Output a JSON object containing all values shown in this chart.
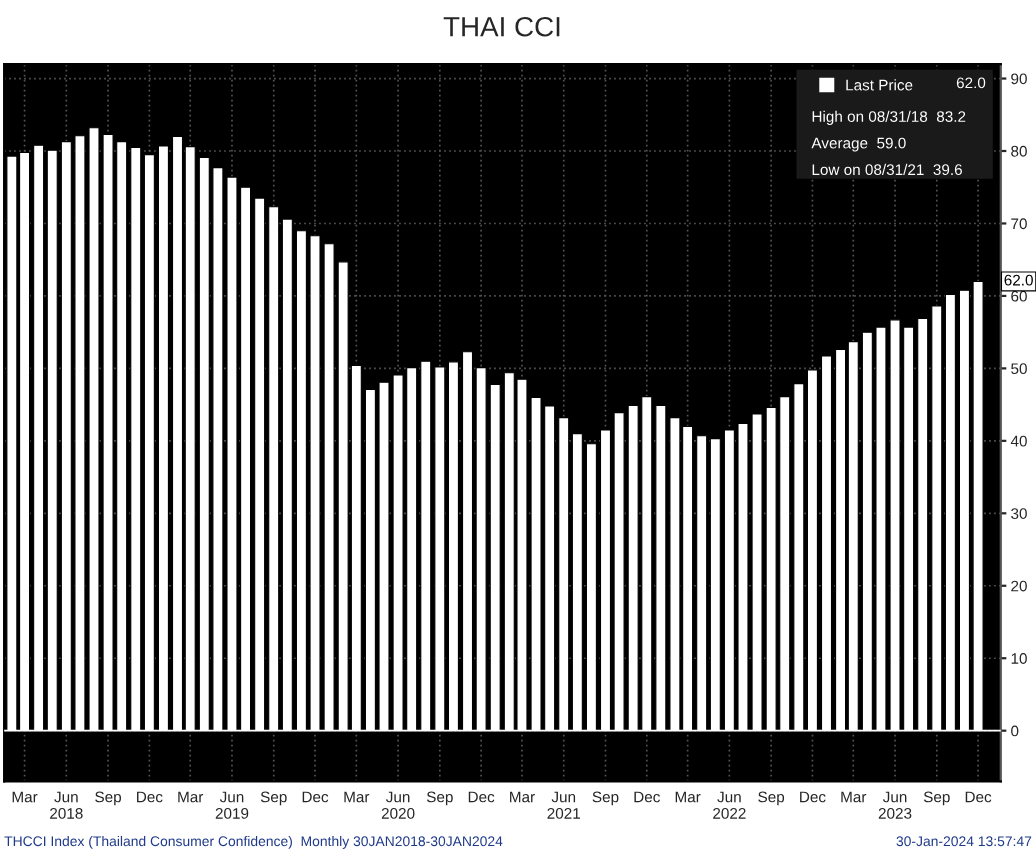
{
  "chart_data": {
    "type": "bar",
    "title": "THAI CCI",
    "x": [
      "2018-02",
      "2018-03",
      "2018-04",
      "2018-05",
      "2018-06",
      "2018-07",
      "2018-08",
      "2018-09",
      "2018-10",
      "2018-11",
      "2018-12",
      "2019-01",
      "2019-02",
      "2019-03",
      "2019-04",
      "2019-05",
      "2019-06",
      "2019-07",
      "2019-08",
      "2019-09",
      "2019-10",
      "2019-11",
      "2019-12",
      "2020-01",
      "2020-02",
      "2020-03",
      "2020-04",
      "2020-05",
      "2020-06",
      "2020-07",
      "2020-08",
      "2020-09",
      "2020-10",
      "2020-11",
      "2020-12",
      "2021-01",
      "2021-02",
      "2021-03",
      "2021-04",
      "2021-05",
      "2021-06",
      "2021-07",
      "2021-08",
      "2021-09",
      "2021-10",
      "2021-11",
      "2021-12",
      "2022-01",
      "2022-02",
      "2022-03",
      "2022-04",
      "2022-05",
      "2022-06",
      "2022-07",
      "2022-08",
      "2022-09",
      "2022-10",
      "2022-11",
      "2022-12",
      "2023-01",
      "2023-02",
      "2023-03",
      "2023-04",
      "2023-05",
      "2023-06",
      "2023-07",
      "2023-08",
      "2023-09",
      "2023-10",
      "2023-11",
      "2023-12"
    ],
    "series": [
      {
        "name": "Last Price",
        "color": "#ffffff",
        "values": [
          79.3,
          79.8,
          80.8,
          80.1,
          81.3,
          82.1,
          83.2,
          82.3,
          81.3,
          80.5,
          79.5,
          80.7,
          82.0,
          80.6,
          79.1,
          77.7,
          76.4,
          75.0,
          73.5,
          72.3,
          70.6,
          69.0,
          68.3,
          67.2,
          64.7,
          50.4,
          47.1,
          48.1,
          49.1,
          50.1,
          51.0,
          50.2,
          50.9,
          52.3,
          50.1,
          47.8,
          49.4,
          48.5,
          46.0,
          44.8,
          43.2,
          41.0,
          39.6,
          41.5,
          43.9,
          44.9,
          46.1,
          44.9,
          43.2,
          42.0,
          40.7,
          40.3,
          41.5,
          42.4,
          43.7,
          44.6,
          46.1,
          47.9,
          49.8,
          51.7,
          52.6,
          53.7,
          55.0,
          55.7,
          56.7,
          55.7,
          56.9,
          58.6,
          60.2,
          60.8,
          62.0
        ]
      }
    ],
    "xlim": [
      "2018-01-15",
      "2024-01-20"
    ],
    "xticks": [
      {
        "value": "2018-03",
        "label": "Mar"
      },
      {
        "value": "2018-06",
        "label": "Jun\n2018"
      },
      {
        "value": "2018-09",
        "label": "Sep"
      },
      {
        "value": "2018-12",
        "label": "Dec"
      },
      {
        "value": "2019-03",
        "label": "Mar"
      },
      {
        "value": "2019-06",
        "label": "Jun\n2019"
      },
      {
        "value": "2019-09",
        "label": "Sep"
      },
      {
        "value": "2019-12",
        "label": "Dec"
      },
      {
        "value": "2020-03",
        "label": "Mar"
      },
      {
        "value": "2020-06",
        "label": "Jun\n2020"
      },
      {
        "value": "2020-09",
        "label": "Sep"
      },
      {
        "value": "2020-12",
        "label": "Dec"
      },
      {
        "value": "2021-03",
        "label": "Mar"
      },
      {
        "value": "2021-06",
        "label": "Jun\n2021"
      },
      {
        "value": "2021-09",
        "label": "Sep"
      },
      {
        "value": "2021-12",
        "label": "Dec"
      },
      {
        "value": "2022-03",
        "label": "Mar"
      },
      {
        "value": "2022-06",
        "label": "Jun\n2022"
      },
      {
        "value": "2022-09",
        "label": "Sep"
      },
      {
        "value": "2022-12",
        "label": "Dec"
      },
      {
        "value": "2023-03",
        "label": "Mar"
      },
      {
        "value": "2023-06",
        "label": "Jun\n2023"
      },
      {
        "value": "2023-09",
        "label": "Sep"
      },
      {
        "value": "2023-12",
        "label": "Dec"
      }
    ],
    "ylim": [
      -7,
      92
    ],
    "yticks": [
      0,
      10,
      20,
      30,
      40,
      50,
      60,
      70,
      80,
      90
    ],
    "grid": true,
    "legend": "top right",
    "annotations": [
      "62.0",
      "High on 08/31/18  83.2",
      "Average  59.0",
      "Low on 08/31/21  39.6",
      {
        "text": "62.0",
        "x": "2023-12",
        "y": 62.0
      },
      "THCCI Index (Thailand Consumer Confidence)  Monthly 30JAN2018-30JAN2024",
      "30-Jan-2024 13:57:47"
    ]
  }
}
